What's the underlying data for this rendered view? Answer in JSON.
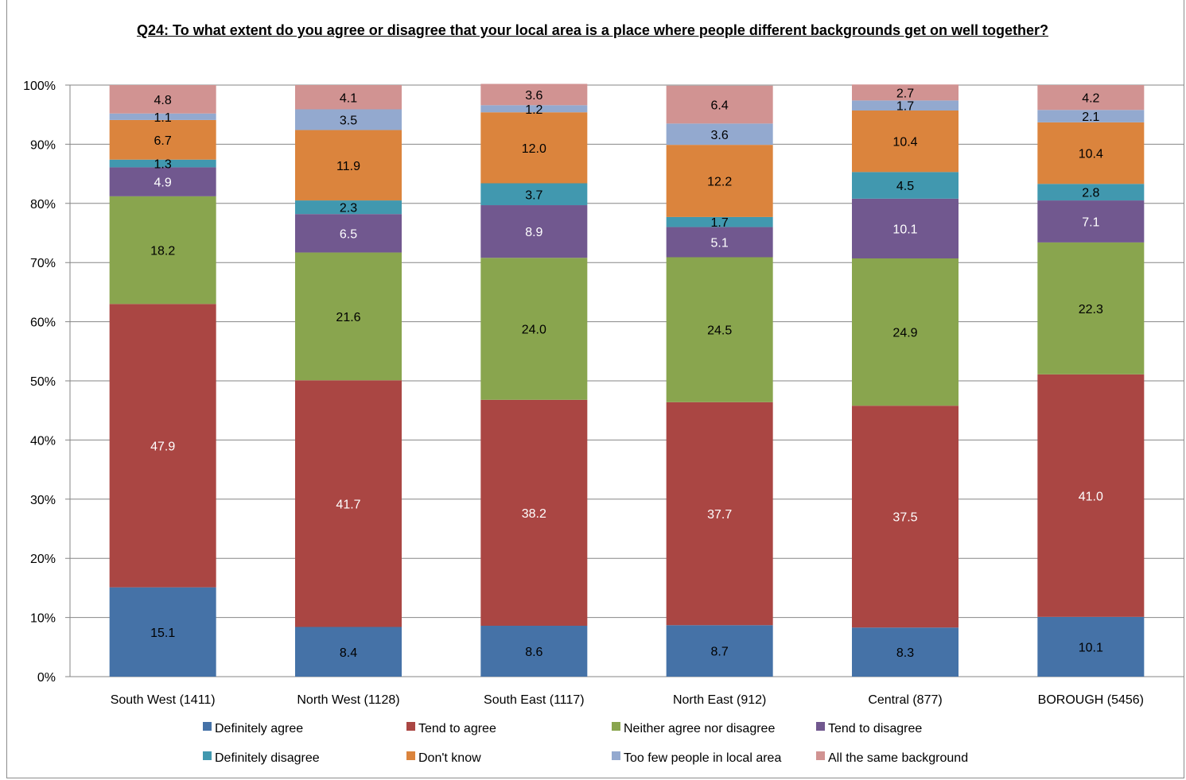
{
  "chart_data": {
    "type": "bar",
    "stacked": true,
    "title": "Q24: To what extent do you agree or disagree that your local area is a place where people different backgrounds get on well together?",
    "categories": [
      "South West (1411)",
      "North West (1128)",
      "South East (1117)",
      "North East (912)",
      "Central (877)",
      "BOROUGH (5456)"
    ],
    "ylim": [
      0,
      100
    ],
    "ytick_labels": [
      "0%",
      "10%",
      "20%",
      "30%",
      "40%",
      "50%",
      "60%",
      "70%",
      "80%",
      "90%",
      "100%"
    ],
    "grid": true,
    "legend_position": "bottom",
    "series": [
      {
        "name": "Definitely agree",
        "color": "#4572A7",
        "label_color": "#000000",
        "values": [
          15.1,
          8.4,
          8.6,
          8.7,
          8.3,
          10.1
        ]
      },
      {
        "name": "Tend to agree",
        "color": "#AA4643",
        "label_color": "#ffffff",
        "values": [
          47.9,
          41.7,
          38.2,
          37.7,
          37.5,
          41.0
        ]
      },
      {
        "name": "Neither agree nor disagree",
        "color": "#89A54E",
        "label_color": "#000000",
        "values": [
          18.2,
          21.6,
          24.0,
          24.5,
          24.9,
          22.3
        ]
      },
      {
        "name": "Tend to disagree",
        "color": "#71588F",
        "label_color": "#ffffff",
        "values": [
          4.9,
          6.5,
          8.9,
          5.1,
          10.1,
          7.1
        ]
      },
      {
        "name": "Definitely disagree",
        "color": "#4198AF",
        "label_color": "#000000",
        "values": [
          1.3,
          2.3,
          3.7,
          1.7,
          4.5,
          2.8
        ]
      },
      {
        "name": "Don't know",
        "color": "#DB843D",
        "label_color": "#000000",
        "values": [
          6.7,
          11.9,
          12.0,
          12.2,
          10.4,
          10.4
        ]
      },
      {
        "name": "Too few people in local area",
        "color": "#93A9CF",
        "label_color": "#000000",
        "values": [
          1.1,
          3.5,
          1.2,
          3.6,
          1.7,
          2.1
        ]
      },
      {
        "name": "All the same background",
        "color": "#D19392",
        "label_color": "#000000",
        "values": [
          4.8,
          4.1,
          3.6,
          6.4,
          2.7,
          4.2
        ]
      }
    ],
    "value_labels": [
      [
        "15.1",
        "8.4",
        "8.6",
        "8.7",
        "8.3",
        "10.1"
      ],
      [
        "47.9",
        "41.7",
        "38.2",
        "37.7",
        "37.5",
        "41.0"
      ],
      [
        "18.2",
        "21.6",
        "24.0",
        "24.5",
        "24.9",
        "22.3"
      ],
      [
        "4.9",
        "6.5",
        "8.9",
        "5.1",
        "10.1",
        "7.1"
      ],
      [
        "1.3",
        "2.3",
        "3.7",
        "1.7",
        "4.5",
        "2.8"
      ],
      [
        "6.7",
        "11.9",
        "12.0",
        "12.2",
        "10.4",
        "10.4"
      ],
      [
        "1.1",
        "3.5",
        "1.2",
        "3.6",
        "1.7",
        "2.1"
      ],
      [
        "4.8",
        "4.1",
        "3.6",
        "6.4",
        "2.7",
        "4.2"
      ]
    ]
  }
}
